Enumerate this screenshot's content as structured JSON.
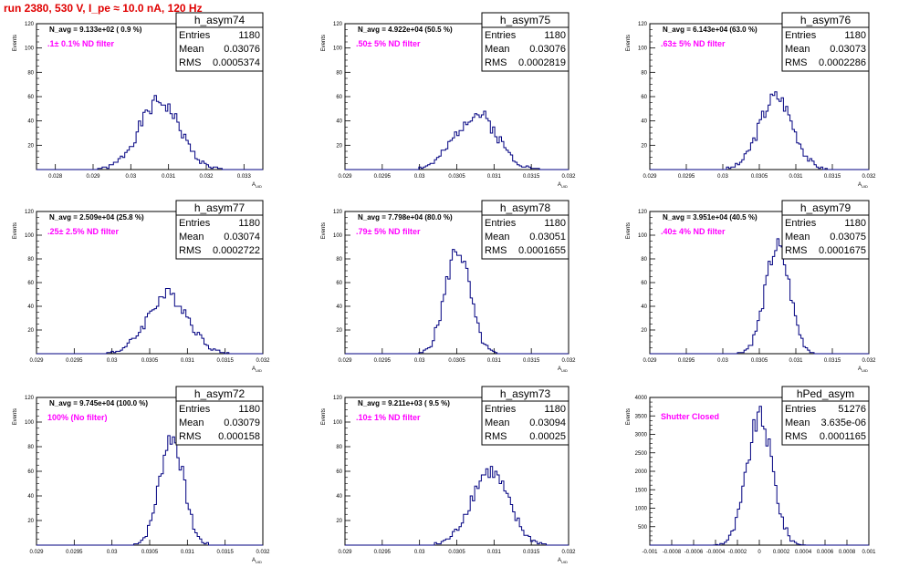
{
  "title": "run 2380,   530 V, I_pe ≈ 10.0 nA, 120 Hz",
  "chart_data": [
    {
      "type": "histogram",
      "name": "h_asym74",
      "navg": "N_avg = 9.133e+02 ( 0.9 %)",
      "filter": ".1± 0.1% ND filter",
      "ylabel": "Events",
      "xlabel": "A_UID",
      "xlim": [
        0.0275,
        0.0335
      ],
      "ylim": [
        0,
        120
      ],
      "xticks": [
        0.028,
        0.029,
        0.03,
        0.031,
        0.032,
        0.033
      ],
      "xtick_labels": [
        "0.028",
        "0.029",
        "0.03",
        "0.031",
        "0.032",
        "0.033"
      ],
      "yticks": [
        20,
        40,
        60,
        80,
        100,
        120
      ],
      "stats": {
        "entries": "1180",
        "mean": "0.03076",
        "rms": "0.0005374"
      },
      "mu": 0.03076,
      "sigma": 0.0005374,
      "peak": 56,
      "seed": 1
    },
    {
      "type": "histogram",
      "name": "h_asym75",
      "navg": "N_avg = 4.922e+04 (50.5 %)",
      "filter": ".50± 5% ND filter",
      "ylabel": "Events",
      "xlabel": "A_UID",
      "xlim": [
        0.029,
        0.032
      ],
      "ylim": [
        0,
        120
      ],
      "xticks": [
        0.029,
        0.0295,
        0.03,
        0.0305,
        0.031,
        0.0315,
        0.032
      ],
      "xtick_labels": [
        "0.029",
        "0.0295",
        "0.03",
        "0.0305",
        "0.031",
        "0.0315",
        "0.032"
      ],
      "yticks": [
        20,
        40,
        60,
        80,
        100,
        120
      ],
      "stats": {
        "entries": "1180",
        "mean": "0.03076",
        "rms": "0.0002819"
      },
      "mu": 0.03076,
      "sigma": 0.0002819,
      "peak": 46,
      "seed": 2
    },
    {
      "type": "histogram",
      "name": "h_asym76",
      "navg": "N_avg = 6.143e+04 (63.0 %)",
      "filter": ".63± 5% ND filter",
      "ylabel": "Events",
      "xlabel": "A_UID",
      "xlim": [
        0.029,
        0.032
      ],
      "ylim": [
        0,
        120
      ],
      "xticks": [
        0.029,
        0.0295,
        0.03,
        0.0305,
        0.031,
        0.0315,
        0.032
      ],
      "xtick_labels": [
        "0.029",
        "0.0295",
        "0.03",
        "0.0305",
        "0.031",
        "0.0315",
        "0.032"
      ],
      "yticks": [
        20,
        40,
        60,
        80,
        100,
        120
      ],
      "stats": {
        "entries": "1180",
        "mean": "0.03073",
        "rms": "0.0002286"
      },
      "mu": 0.03073,
      "sigma": 0.0002286,
      "peak": 60,
      "seed": 3
    },
    {
      "type": "histogram",
      "name": "h_asym77",
      "navg": "N_avg = 2.509e+04 (25.8 %)",
      "filter": ".25± 2.5% ND filter",
      "ylabel": "Events",
      "xlabel": "A_UID",
      "xlim": [
        0.029,
        0.032
      ],
      "ylim": [
        0,
        120
      ],
      "xticks": [
        0.029,
        0.0295,
        0.03,
        0.0305,
        0.031,
        0.0315,
        0.032
      ],
      "xtick_labels": [
        "0.029",
        "0.0295",
        "0.03",
        "0.0305",
        "0.031",
        "0.0315",
        "0.032"
      ],
      "yticks": [
        20,
        40,
        60,
        80,
        100,
        120
      ],
      "stats": {
        "entries": "1180",
        "mean": "0.03074",
        "rms": "0.0002722"
      },
      "mu": 0.03074,
      "sigma": 0.0002722,
      "peak": 50,
      "seed": 4
    },
    {
      "type": "histogram",
      "name": "h_asym78",
      "navg": "N_avg = 7.798e+04 (80.0 %)",
      "filter": ".79± 5% ND filter",
      "ylabel": "Events",
      "xlabel": "A_UID",
      "xlim": [
        0.029,
        0.032
      ],
      "ylim": [
        0,
        120
      ],
      "xticks": [
        0.029,
        0.0295,
        0.03,
        0.0305,
        0.031,
        0.0315,
        0.032
      ],
      "xtick_labels": [
        "0.029",
        "0.0295",
        "0.03",
        "0.0305",
        "0.031",
        "0.0315",
        "0.032"
      ],
      "yticks": [
        20,
        40,
        60,
        80,
        100,
        120
      ],
      "stats": {
        "entries": "1180",
        "mean": "0.03051",
        "rms": "0.0001655"
      },
      "mu": 0.03051,
      "sigma": 0.0001655,
      "peak": 88,
      "seed": 5
    },
    {
      "type": "histogram",
      "name": "h_asym79",
      "navg": "N_avg = 3.951e+04 (40.5 %)",
      "filter": ".40± 4% ND filter",
      "ylabel": "Events",
      "xlabel": "A_UID",
      "xlim": [
        0.029,
        0.032
      ],
      "ylim": [
        0,
        120
      ],
      "xticks": [
        0.029,
        0.0295,
        0.03,
        0.0305,
        0.031,
        0.0315,
        0.032
      ],
      "xtick_labels": [
        "0.029",
        "0.0295",
        "0.03",
        "0.0305",
        "0.031",
        "0.0315",
        "0.032"
      ],
      "yticks": [
        20,
        40,
        60,
        80,
        100,
        120
      ],
      "stats": {
        "entries": "1180",
        "mean": "0.03075",
        "rms": "0.0001675"
      },
      "mu": 0.03075,
      "sigma": 0.0001675,
      "peak": 90,
      "seed": 6
    },
    {
      "type": "histogram",
      "name": "h_asym72",
      "navg": "N_avg = 9.745e+04 (100.0 %)",
      "filter": "100% (No filter)",
      "ylabel": "Events",
      "xlabel": "A_UID",
      "xlim": [
        0.029,
        0.032
      ],
      "ylim": [
        0,
        120
      ],
      "xticks": [
        0.029,
        0.0295,
        0.03,
        0.0305,
        0.031,
        0.0315,
        0.032
      ],
      "xtick_labels": [
        "0.029",
        "0.0295",
        "0.03",
        "0.0305",
        "0.031",
        "0.0315",
        "0.032"
      ],
      "yticks": [
        20,
        40,
        60,
        80,
        100,
        120
      ],
      "stats": {
        "entries": "1180",
        "mean": "0.03079",
        "rms": "0.000158"
      },
      "mu": 0.03079,
      "sigma": 0.000158,
      "peak": 88,
      "seed": 7
    },
    {
      "type": "histogram",
      "name": "h_asym73",
      "navg": "N_avg = 9.211e+03 ( 9.5 %)",
      "filter": ".10± 1% ND filter",
      "ylabel": "Events",
      "xlabel": "A_UID",
      "xlim": [
        0.029,
        0.032
      ],
      "ylim": [
        0,
        120
      ],
      "xticks": [
        0.029,
        0.0295,
        0.03,
        0.0305,
        0.031,
        0.0315,
        0.032
      ],
      "xtick_labels": [
        "0.029",
        "0.0295",
        "0.03",
        "0.0305",
        "0.031",
        "0.0315",
        "0.032"
      ],
      "yticks": [
        20,
        40,
        60,
        80,
        100,
        120
      ],
      "stats": {
        "entries": "1180",
        "mean": "0.03094",
        "rms": "0.00025"
      },
      "mu": 0.03094,
      "sigma": 0.00025,
      "peak": 60,
      "seed": 8
    },
    {
      "type": "histogram",
      "name": "hPed_asym",
      "navg": "",
      "filter": "Shutter Closed",
      "ylabel": "Events",
      "xlabel": "",
      "xlim": [
        -0.001,
        0.001
      ],
      "ylim": [
        0,
        4000
      ],
      "xticks": [
        -0.001,
        -0.0008,
        -0.0006,
        -0.0004,
        -0.0002,
        0,
        0.0002,
        0.0004,
        0.0006,
        0.0008,
        0.001
      ],
      "xtick_labels": [
        "-0.001",
        "-0.0008",
        "-0.0006",
        "-0.0004",
        "-0.0002",
        "0",
        "0.0002",
        "0.0004",
        "0.0006",
        "0.0008",
        "0.001"
      ],
      "yticks": [
        500,
        1000,
        1500,
        2000,
        2500,
        3000,
        3500,
        4000
      ],
      "stats": {
        "entries": "51276",
        "mean": "3.635e-06",
        "rms": "0.0001165"
      },
      "mu": 3.635e-06,
      "sigma": 0.0001165,
      "peak": 3450,
      "seed": 9
    }
  ]
}
